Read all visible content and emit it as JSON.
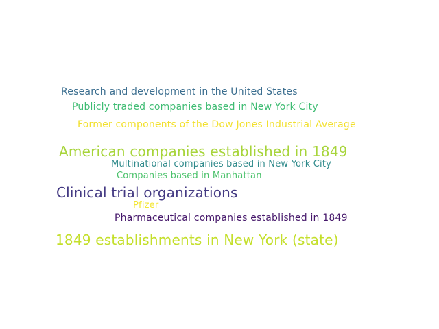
{
  "words": [
    {
      "text": "Research and development in the United States",
      "color": "#3b6e8f"
    },
    {
      "text": "Publicly traded companies based in New York City",
      "color": "#3fbc73"
    },
    {
      "text": "Former components of the Dow Jones Industrial Average",
      "color": "#f2e02f"
    },
    {
      "text": "American companies established in 1849",
      "color": "#a7d43a"
    },
    {
      "text": "Multinational companies based in New York City",
      "color": "#2f8a8b"
    },
    {
      "text": "Companies based in Manhattan",
      "color": "#4cc26c"
    },
    {
      "text": "Clinical trial organizations",
      "color": "#443a83"
    },
    {
      "text": "Pfizer",
      "color": "#f3e633"
    },
    {
      "text": "Pharmaceutical companies established in 1849",
      "color": "#46186b"
    },
    {
      "text": "1849 establishments in New York (state)",
      "color": "#c4df2b"
    }
  ]
}
